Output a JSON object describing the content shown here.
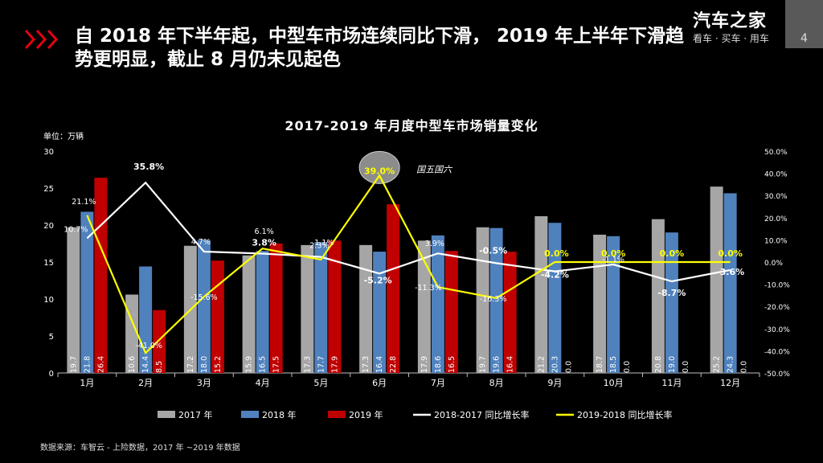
{
  "slide": {
    "headline": "自 2018 年下半年起，中型车市场连续同比下滑， 2019 年上半年下滑趋势更明显，截止 8 月仍未见起色",
    "brand_name": "汽车之家",
    "brand_slogan": "看车 · 买车 · 用车",
    "page_number": "4",
    "unit_label": "单位：万辆",
    "source": "数据来源：车智云 - 上险数据，2017 年 ~2019 年数据",
    "annotation": "国五国六"
  },
  "chart_data": {
    "type": "bar",
    "title": "2017-2019 年月度中型车市场销量变化",
    "categories": [
      "1月",
      "2月",
      "3月",
      "4月",
      "5月",
      "6月",
      "7月",
      "8月",
      "9月",
      "10月",
      "11月",
      "12月"
    ],
    "ylim": [
      0,
      30
    ],
    "y_ticks": [
      "0",
      "5",
      "10",
      "15",
      "20",
      "25",
      "30"
    ],
    "y2lim": [
      -50,
      50
    ],
    "y2_ticks": [
      "-50.0%",
      "-40.0%",
      "-30.0%",
      "-20.0%",
      "-10.0%",
      "0.0%",
      "10.0%",
      "20.0%",
      "30.0%",
      "40.0%",
      "50.0%"
    ],
    "series": [
      {
        "name": "2017 年",
        "kind": "bar",
        "color": "#A6A6A6",
        "values": [
          19.7,
          10.6,
          17.2,
          15.9,
          17.3,
          17.3,
          17.9,
          19.7,
          21.2,
          18.7,
          20.8,
          25.2
        ],
        "labels": [
          "19.7",
          "10.6",
          "17.2",
          "15.9",
          "17.3",
          "17.3",
          "17.9",
          "19.7",
          "21.2",
          "18.7",
          "20.8",
          "25.2"
        ]
      },
      {
        "name": "2018 年",
        "kind": "bar",
        "color": "#4F81BD",
        "values": [
          21.8,
          14.4,
          18.0,
          16.5,
          17.7,
          16.4,
          18.6,
          19.6,
          20.3,
          18.5,
          19.0,
          24.3
        ],
        "labels": [
          "21.8",
          "14.4",
          "18.0",
          "16.5",
          "17.7",
          "16.4",
          "18.6",
          "19.6",
          "20.3",
          "18.5",
          "19.0",
          "24.3"
        ]
      },
      {
        "name": "2019 年",
        "kind": "bar",
        "color": "#C00000",
        "values": [
          26.4,
          8.5,
          15.2,
          17.5,
          17.9,
          22.8,
          16.5,
          16.4,
          0,
          0,
          0,
          0
        ],
        "labels": [
          "26.4",
          "8.5",
          "15.2",
          "17.5",
          "17.9",
          "22.8",
          "16.5",
          "16.4",
          "0.0",
          "0.0",
          "0.0",
          "0.0"
        ]
      },
      {
        "name": "2018-2017 同比增长率",
        "kind": "line",
        "color": "#FFFFFF",
        "values": [
          10.7,
          35.8,
          4.7,
          3.8,
          2.3,
          -5.2,
          3.9,
          -0.5,
          -4.2,
          -1.1,
          -8.7,
          -3.6
        ],
        "labels": [
          "10.7%",
          "35.8%",
          "4.7%",
          "3.8%",
          "2.3%",
          "-5.2%",
          "3.9%",
          "-0.5%",
          "-4.2%",
          "-1.1%",
          "-8.7%",
          "-3.6%"
        ]
      },
      {
        "name": "2019-2018 同比增长率",
        "kind": "line",
        "color": "#FFFF00",
        "values": [
          21.1,
          -41.0,
          -15.6,
          6.1,
          1.1,
          39.0,
          -11.3,
          -16.3,
          0.0,
          0.0,
          0.0,
          0.0
        ],
        "labels": [
          "21.1%",
          "-41.0%",
          "-15.6%",
          "6.1%",
          "1.1%",
          "39.0%",
          "-11.3%",
          "-16.3%",
          "0.0%",
          "0.0%",
          "0.0%",
          "0.0%"
        ]
      }
    ],
    "legend_position": "bottom"
  }
}
